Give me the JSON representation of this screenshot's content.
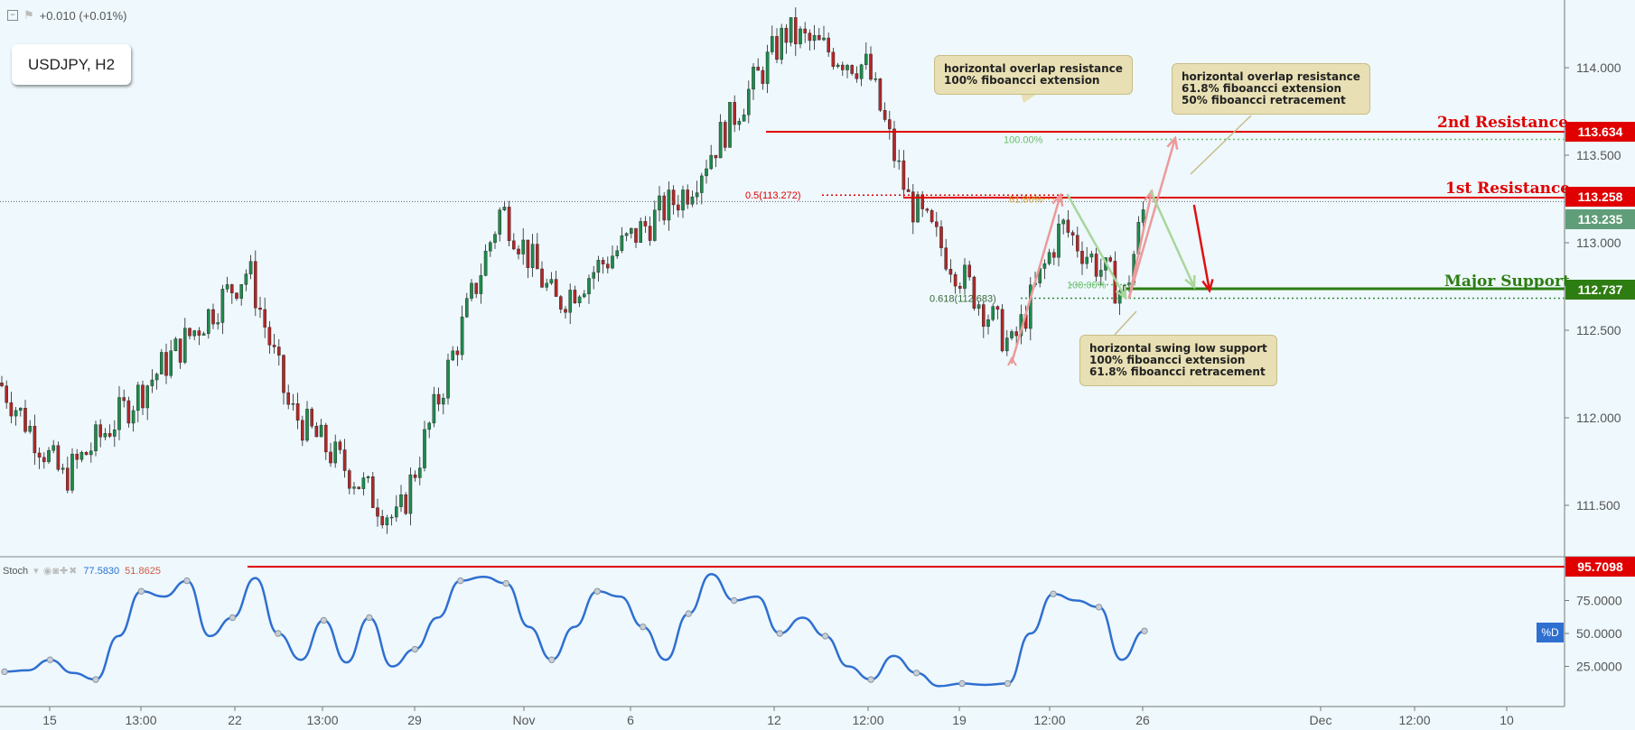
{
  "header": {
    "change": "+0.010 (+0.01%)"
  },
  "symbol": "USDJPY, H2",
  "colors": {
    "background": "#eef8fd",
    "up": "#1f8a4c",
    "down": "#b02828",
    "resistance": "#e00000",
    "support": "#2e7d12",
    "stoch": "#2f6fd0"
  },
  "levels": {
    "r2": {
      "name": "2nd Resistance",
      "price": "113.634"
    },
    "r1": {
      "name": "1st Resistance",
      "price": "113.258"
    },
    "current": {
      "price": "113.235"
    },
    "support": {
      "name": "Major Support",
      "price": "112.737"
    }
  },
  "fib_labels": {
    "r2_ext": "100.00%",
    "r1_ret": "0.5(113.272)",
    "r1_ext": "61.80%",
    "s_ext": "100.00%",
    "s_ret": "0.618(112.683)"
  },
  "annotations": {
    "r2_note": "horizontal overlap resistance\n100% fiboancci extension",
    "r1_note": "horizontal overlap resistance\n61.8% fiboancci extension\n50% fiboancci retracement",
    "s_note": "horizontal swing low support\n100% fiboancci extension\n61.8% fiboancci retracement"
  },
  "stoch": {
    "name": "Stoch",
    "value1": "77.5830",
    "value2": "51.8625",
    "level": "95.7098",
    "badge": "%D",
    "ticks": [
      "75.0000",
      "50.0000",
      "25.0000"
    ]
  },
  "chart_data": [
    {
      "type": "candlestick",
      "title": "USDJPY, H2",
      "ylim": [
        111.2,
        114.4
      ],
      "y_ticks": [
        "114.000",
        "113.500",
        "113.000",
        "112.500",
        "112.000",
        "111.500"
      ],
      "x_ticks": [
        "15",
        "13:00",
        "22",
        "13:00",
        "29",
        "Nov",
        "6",
        "12",
        "12:00",
        "19",
        "12:00",
        "26",
        "Dec",
        "12:00",
        "10"
      ],
      "anchors": [
        {
          "label": "start",
          "price": 112.2
        },
        {
          "label": "low 16",
          "price": 111.65
        },
        {
          "label": "high 22",
          "price": 112.85
        },
        {
          "label": "low 26",
          "price": 112.05
        },
        {
          "label": "low 28",
          "price": 111.4
        },
        {
          "label": "high 31",
          "price": 113.2
        },
        {
          "label": "low Nov 2",
          "price": 112.65
        },
        {
          "label": "high Nov 6",
          "price": 113.3
        },
        {
          "label": "high Nov 12",
          "price": 114.2
        },
        {
          "label": "high 12:00",
          "price": 114.0
        },
        {
          "label": "dip",
          "price": 113.25
        },
        {
          "label": "low 19",
          "price": 112.4
        },
        {
          "label": "high 12:00",
          "price": 113.1
        },
        {
          "label": "low 26",
          "price": 112.7
        },
        {
          "label": "last",
          "price": 113.235
        }
      ],
      "levels": [
        113.634,
        113.258,
        112.737,
        112.683,
        113.272
      ]
    },
    {
      "type": "line",
      "title": "Stoch",
      "ylim": [
        0,
        100
      ],
      "series": [
        {
          "name": "%D",
          "values": [
            21,
            22,
            30,
            20,
            15,
            48,
            82,
            78,
            90,
            48,
            62,
            92,
            50,
            30,
            60,
            28,
            62,
            25,
            38,
            62,
            90,
            93,
            88,
            55,
            30,
            55,
            82,
            78,
            55,
            30,
            65,
            95,
            75,
            78,
            50,
            62,
            48,
            25,
            15,
            33,
            20,
            10,
            12,
            11,
            12,
            50,
            80,
            75,
            70,
            30,
            51.86
          ]
        }
      ]
    }
  ]
}
